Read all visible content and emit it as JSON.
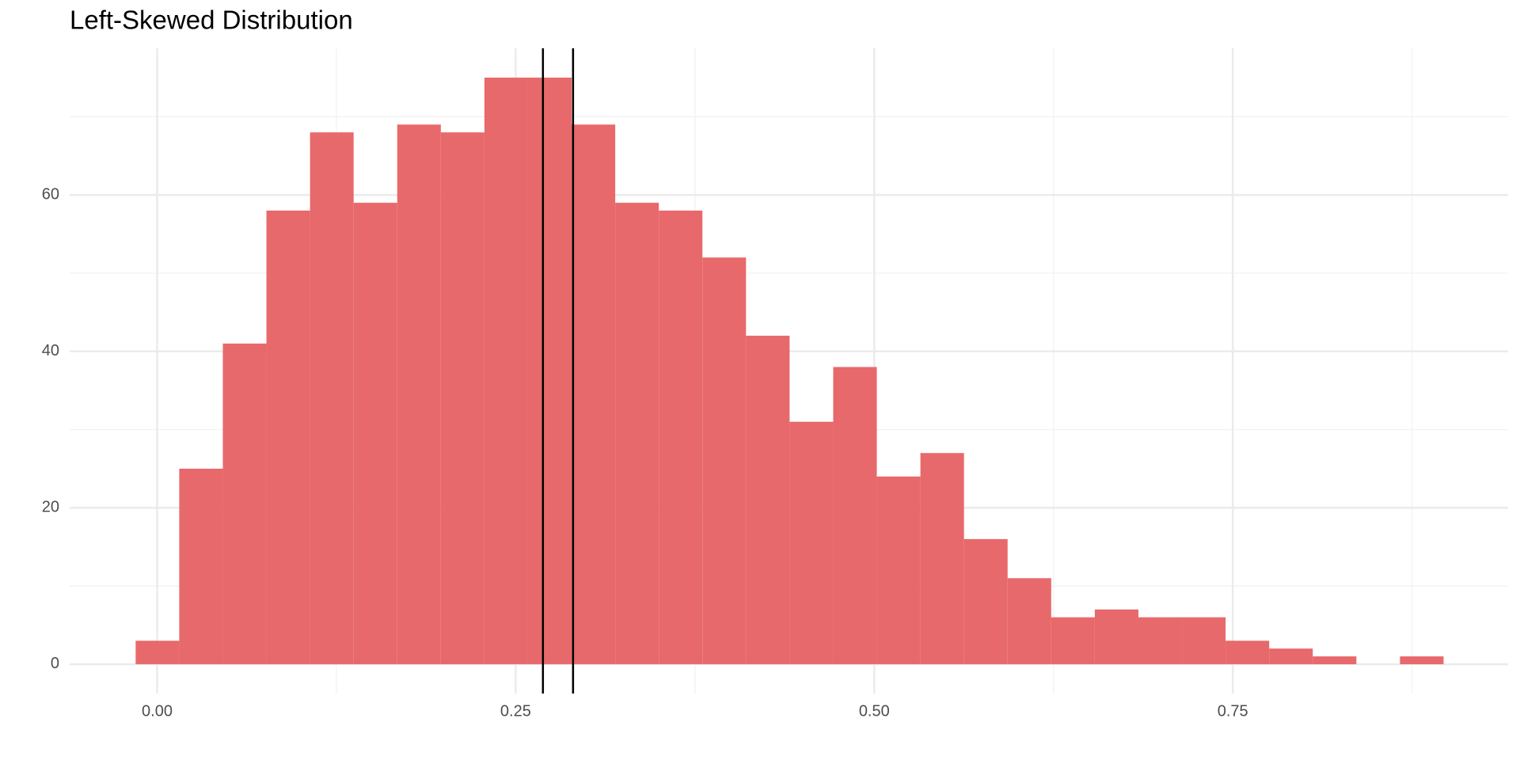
{
  "chart_data": {
    "type": "histogram",
    "title": "Left-Skewed Distribution",
    "bins": [
      -0.015,
      0.0154,
      0.0458,
      0.0762,
      0.1066,
      0.137,
      0.1674,
      0.1978,
      0.2282,
      0.2586,
      0.289,
      0.3194,
      0.3498,
      0.3802,
      0.4106,
      0.441,
      0.4714,
      0.5018,
      0.5322,
      0.5626,
      0.593,
      0.6234,
      0.6538,
      0.6842,
      0.7146,
      0.745,
      0.7754,
      0.8058,
      0.8362,
      0.8666,
      0.897
    ],
    "values": [
      3,
      25,
      41,
      58,
      68,
      59,
      69,
      68,
      75,
      75,
      69,
      59,
      58,
      52,
      42,
      31,
      38,
      24,
      27,
      16,
      11,
      6,
      7,
      6,
      6,
      3,
      2,
      1,
      0,
      1
    ],
    "color": "#e8696b",
    "vlines": [
      0.269,
      0.29
    ],
    "vline_color": "#000000",
    "xlim": [
      -0.061,
      0.942
    ],
    "xticks": [
      {
        "value": 0,
        "label": "0.00"
      },
      0.25,
      {
        "value": 0.5,
        "label": "0.50"
      },
      0.75
    ],
    "minor_xticks": [
      0.125,
      0.375,
      0.625,
      0.875
    ],
    "ylim": [
      -3.75,
      78.75
    ],
    "yticks": [
      0,
      20,
      40,
      60
    ],
    "minor_yticks": [
      10,
      30,
      50,
      70
    ],
    "grid": true
  }
}
